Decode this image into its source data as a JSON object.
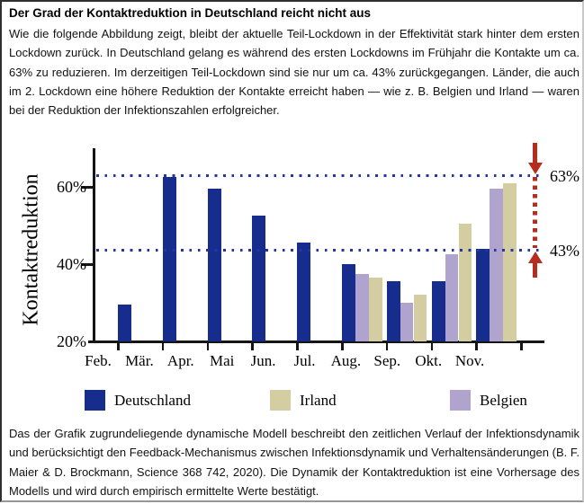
{
  "title": "Der Grad der Kontaktreduktion in Deutschland reicht nicht aus",
  "intro_text": "Wie die folgende Abbildung zeigt, bleibt der aktuelle Teil-Lockdown in der Effektivität stark hinter dem ersten Lockdown zurück. In Deutschland gelang es während des ersten Lockdowns im Frühjahr die Kontakte um ca. 63% zu reduzieren. Im derzeitigen Teil-Lockdown sind sie nur um ca. 43% zurückgegangen. Länder, die auch im 2. Lockdown eine höhere Reduktion der Kontakte erreicht haben — wie z. B. Belgien und Irland — waren bei der Reduktion der Infektionszahlen erfolgreicher.",
  "footnote_text": "Das der Grafik zugrundeliegende dynamische Modell beschreibt den zeitlichen Verlauf der Infektionsdynamik und berücksichtigt den Feedback-Mechanismus zwischen Infektionsdynamik und Verhaltensänderungen (B. F. Maier & D. Brockmann, Science 368 742, 2020). Die Dynamik der Kontaktreduktion ist eine Vorhersage des Modells und wird durch empirisch ermittelte Werte bestätigt.",
  "chart_data": {
    "type": "bar",
    "title": "",
    "xlabel": "",
    "ylabel": "Kontaktreduktion",
    "ylim": [
      20,
      70
    ],
    "grid": false,
    "categories": [
      "Feb.",
      "Mär.",
      "Apr.",
      "Mai",
      "Jun.",
      "Jul.",
      "Aug.",
      "Sep.",
      "Okt.",
      "Nov."
    ],
    "series": [
      {
        "name": "Deutschland",
        "color": "#172d8d",
        "values": [
          null,
          29.5,
          62.5,
          59.5,
          52.5,
          45.5,
          40,
          35.5,
          35.5,
          44
        ]
      },
      {
        "name": "Belgien",
        "color": "#b0a3cd",
        "values": [
          null,
          null,
          null,
          null,
          null,
          null,
          37.5,
          30,
          42.5,
          59.5
        ]
      },
      {
        "name": "Irland",
        "color": "#d3cda1",
        "values": [
          null,
          null,
          null,
          null,
          null,
          null,
          36.5,
          32,
          50.5,
          61
        ]
      }
    ],
    "y_ticks": [
      {
        "label": "20%",
        "value": 20
      },
      {
        "label": "40%",
        "value": 40
      },
      {
        "label": "60%",
        "value": 60
      }
    ],
    "reference_lines": [
      {
        "label": "63%",
        "value": 63,
        "color": "#2336a4",
        "style": "dotted"
      },
      {
        "label": "43%",
        "value": 43,
        "color": "#2336a4",
        "style": "dotted"
      }
    ],
    "annotation": {
      "color": "#b72c1e",
      "description": "red dotted connector with arrows between 63% and 43% lines"
    },
    "legend": [
      {
        "label": "Deutschland",
        "color": "#172d8d"
      },
      {
        "label": "Irland",
        "color": "#d3cda1"
      },
      {
        "label": "Belgien",
        "color": "#b0a3cd"
      }
    ],
    "legend_position": "bottom"
  }
}
